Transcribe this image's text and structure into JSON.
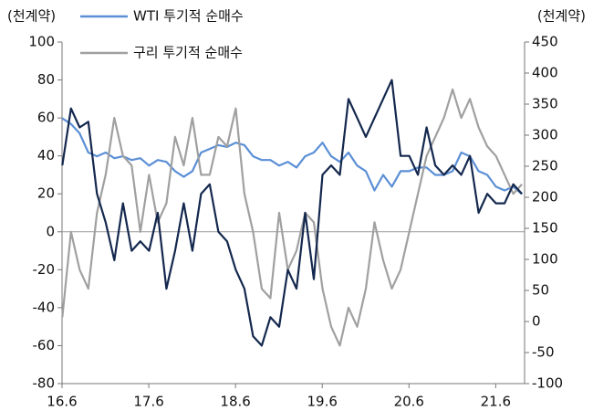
{
  "chart_data": {
    "type": "line",
    "y_label": "(천계약)",
    "y2_label": "(천계약)",
    "x": [
      16.42,
      16.52,
      16.62,
      16.72,
      16.82,
      16.92,
      17.02,
      17.12,
      17.22,
      17.32,
      17.42,
      17.52,
      17.62,
      17.72,
      17.82,
      17.92,
      18.02,
      18.12,
      18.22,
      18.32,
      18.42,
      18.52,
      18.62,
      18.72,
      18.82,
      18.92,
      19.02,
      19.12,
      19.22,
      19.32,
      19.42,
      19.52,
      19.62,
      19.72,
      19.82,
      19.92,
      20.02,
      20.12,
      20.22,
      20.32,
      20.42,
      20.52,
      20.62,
      20.72,
      20.82,
      20.92,
      21.02,
      21.12,
      21.22,
      21.32,
      21.42,
      21.52,
      21.62,
      21.72
    ],
    "xlim": [
      16.417,
      21.75
    ],
    "xticks": [
      {
        "value": 16.417,
        "label": "16.6"
      },
      {
        "value": 17.417,
        "label": "17.6"
      },
      {
        "value": 18.417,
        "label": "18.6"
      },
      {
        "value": 19.417,
        "label": "19.6"
      },
      {
        "value": 20.417,
        "label": "20.6"
      },
      {
        "value": 21.417,
        "label": "21.6"
      }
    ],
    "ylim": [
      -80,
      100
    ],
    "yticks": [
      -80,
      -60,
      -40,
      -20,
      0,
      20,
      40,
      60,
      80,
      100
    ],
    "y2lim": [
      -100,
      450
    ],
    "y2ticks": [
      -100,
      -50,
      0,
      50,
      100,
      150,
      200,
      250,
      300,
      350,
      400,
      450
    ],
    "zero_line": true,
    "legend": "top-left",
    "series": [
      {
        "name": "WTI 투기적 순매수",
        "color": "#5b8fd6",
        "axis": "y2",
        "values": [
          327,
          318,
          303,
          272,
          266,
          272,
          263,
          266,
          260,
          263,
          251,
          260,
          257,
          242,
          233,
          242,
          272,
          278,
          284,
          281,
          288,
          284,
          266,
          260,
          260,
          251,
          257,
          248,
          266,
          272,
          288,
          266,
          257,
          272,
          251,
          242,
          211,
          236,
          217,
          242,
          242,
          248,
          248,
          236,
          236,
          242,
          272,
          266,
          242,
          236,
          217,
          211,
          217,
          205
        ]
      },
      {
        "name": "구리 투기적 순매수",
        "color": "#a0a0a0",
        "axis": "y",
        "values": [
          -45,
          0,
          -20,
          -30,
          10,
          30,
          60,
          40,
          35,
          0,
          30,
          5,
          15,
          50,
          35,
          60,
          30,
          30,
          50,
          45,
          65,
          20,
          0,
          -30,
          -35,
          10,
          -20,
          -10,
          10,
          5,
          -30,
          -50,
          -60,
          -40,
          -50,
          -30,
          5,
          -15,
          -30,
          -20,
          0,
          20,
          40,
          50,
          60,
          75,
          60,
          70,
          55,
          45,
          40,
          30,
          20,
          25
        ]
      },
      {
        "color": "#14284e",
        "axis": "y",
        "values": [
          35,
          65,
          55,
          58,
          20,
          5,
          -15,
          15,
          -10,
          -5,
          -10,
          10,
          -30,
          -10,
          15,
          -10,
          20,
          25,
          0,
          -5,
          -20,
          -30,
          -55,
          -60,
          -45,
          -50,
          -20,
          -30,
          10,
          -25,
          30,
          35,
          30,
          70,
          60,
          50,
          60,
          70,
          80,
          40,
          40,
          30,
          55,
          35,
          30,
          35,
          30,
          40,
          10,
          20,
          15,
          15,
          25,
          20
        ]
      }
    ]
  }
}
